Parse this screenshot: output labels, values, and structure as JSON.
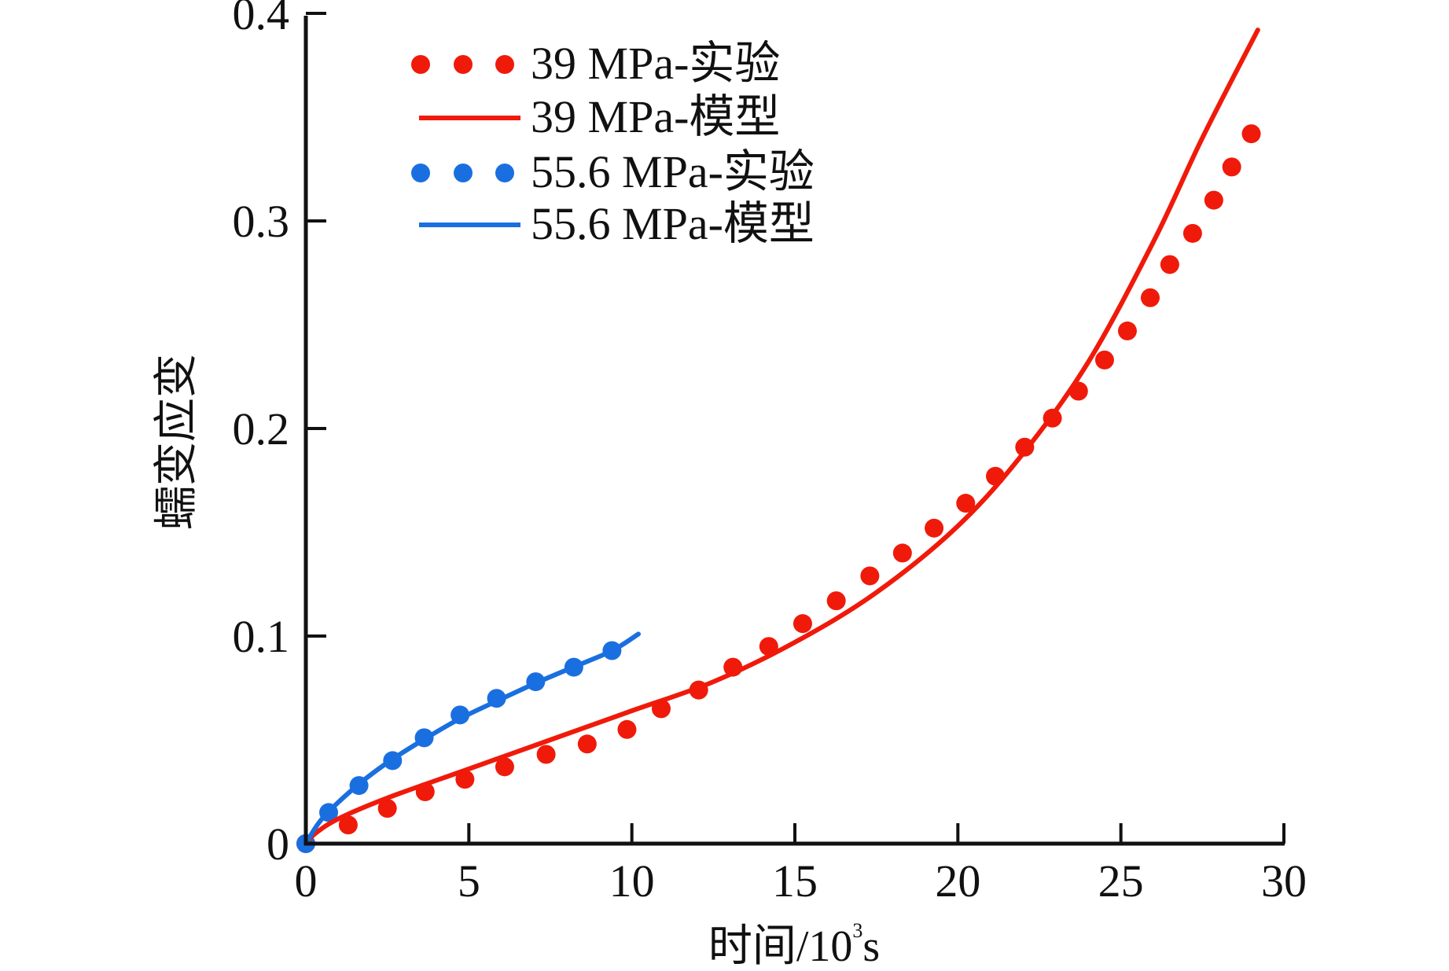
{
  "chart_data": {
    "type": "line",
    "title": "",
    "xlabel": "时间/10³s",
    "xlabel_main": "时间/10",
    "xlabel_sup": "3",
    "xlabel_unit": "s",
    "ylabel": "蠕变应变",
    "xlim": [
      0,
      30
    ],
    "ylim": [
      0,
      0.4
    ],
    "xticks": [
      0,
      5,
      10,
      15,
      20,
      25,
      30
    ],
    "xtick_labels": [
      "0",
      "5",
      "10",
      "15",
      "20",
      "25",
      "30"
    ],
    "yticks": [
      0,
      0.1,
      0.2,
      0.3,
      0.4
    ],
    "ytick_labels": [
      "0",
      "0.1",
      "0.2",
      "0.3",
      "0.4"
    ],
    "grid": false,
    "legend_position": "top-left",
    "series": [
      {
        "name": "39 MPa-实验",
        "kind": "scatter",
        "color": "#f01a0a",
        "x": [
          0,
          1.3,
          2.5,
          3.66,
          4.88,
          6.1,
          7.37,
          8.63,
          9.85,
          10.9,
          12.05,
          13.1,
          14.2,
          15.24,
          16.27,
          17.3,
          18.3,
          19.27,
          20.24,
          21.15,
          22.05,
          22.9,
          23.7,
          24.5,
          25.2,
          25.9,
          26.5,
          27.2,
          27.85,
          28.4,
          29.0
        ],
        "y": [
          0,
          0.009,
          0.017,
          0.025,
          0.031,
          0.037,
          0.043,
          0.048,
          0.055,
          0.065,
          0.074,
          0.085,
          0.095,
          0.106,
          0.117,
          0.129,
          0.14,
          0.152,
          0.164,
          0.177,
          0.191,
          0.205,
          0.218,
          0.233,
          0.247,
          0.263,
          0.279,
          0.294,
          0.31,
          0.326,
          0.342
        ]
      },
      {
        "name": "39 MPa-模型",
        "kind": "line",
        "color": "#f01a0a",
        "x": [
          0,
          0.3,
          1,
          2.5,
          5,
          7.5,
          10,
          12.5,
          15,
          17.5,
          20,
          22,
          24,
          26,
          27.5,
          29.2
        ],
        "y": [
          0,
          0.005,
          0.012,
          0.022,
          0.036,
          0.05,
          0.064,
          0.078,
          0.097,
          0.121,
          0.153,
          0.188,
          0.232,
          0.29,
          0.34,
          0.392
        ]
      },
      {
        "name": "55.6 MPa-实验",
        "kind": "scatter",
        "color": "#1a6fe0",
        "x": [
          0,
          0.7,
          1.63,
          2.66,
          3.63,
          4.73,
          5.85,
          7.05,
          8.22,
          9.39
        ],
        "y": [
          0,
          0.015,
          0.028,
          0.04,
          0.051,
          0.062,
          0.07,
          0.078,
          0.085,
          0.093
        ]
      },
      {
        "name": "55.6 MPa-模型",
        "kind": "line",
        "color": "#1a6fe0",
        "x": [
          0,
          0.5,
          1.5,
          2.5,
          3.6,
          4.7,
          5.9,
          7.0,
          8.2,
          9.4,
          10.2
        ],
        "y": [
          0,
          0.012,
          0.027,
          0.039,
          0.05,
          0.06,
          0.069,
          0.077,
          0.085,
          0.093,
          0.101
        ]
      }
    ]
  }
}
